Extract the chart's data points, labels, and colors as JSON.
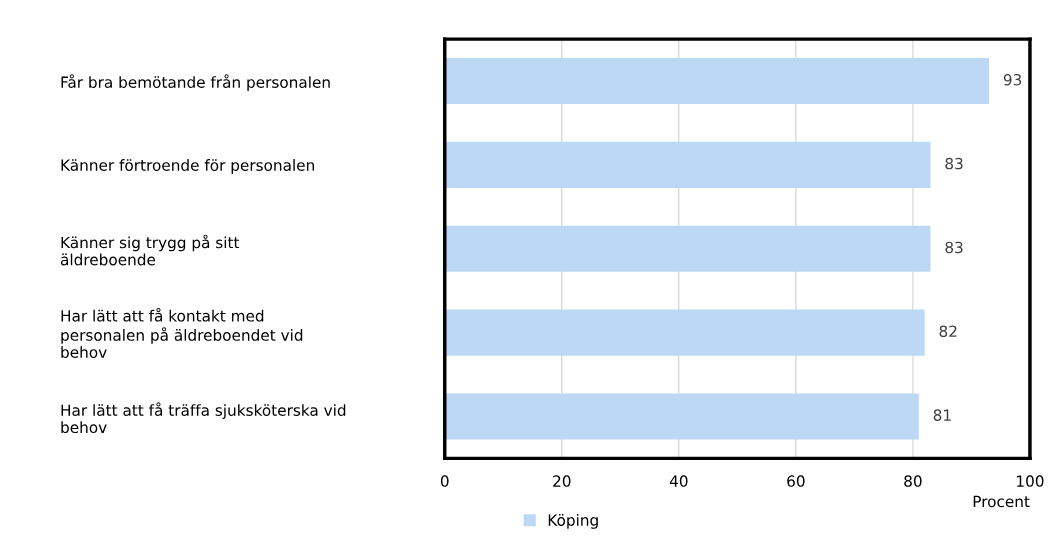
{
  "chart_data": {
    "type": "bar",
    "orientation": "horizontal",
    "xlabel": "Procent",
    "categories": [
      "Får bra bemötande från personalen",
      "Känner förtroende för personalen",
      "Känner sig trygg på sitt\näldreboende",
      "Har lätt att få kontakt med\npersonalen på äldreboendet vid\nbehov",
      "Har lätt att få träffa sjuksköterska vid\nbehov"
    ],
    "series": [
      {
        "name": "Köping",
        "color": "#bcd8f4",
        "values": [
          93,
          83,
          83,
          82,
          81
        ]
      }
    ],
    "xlim": [
      0,
      100
    ],
    "xticks": [
      0,
      20,
      40,
      60,
      80,
      100
    ],
    "grid": "x",
    "legend": "bottom",
    "data_labels": true
  }
}
